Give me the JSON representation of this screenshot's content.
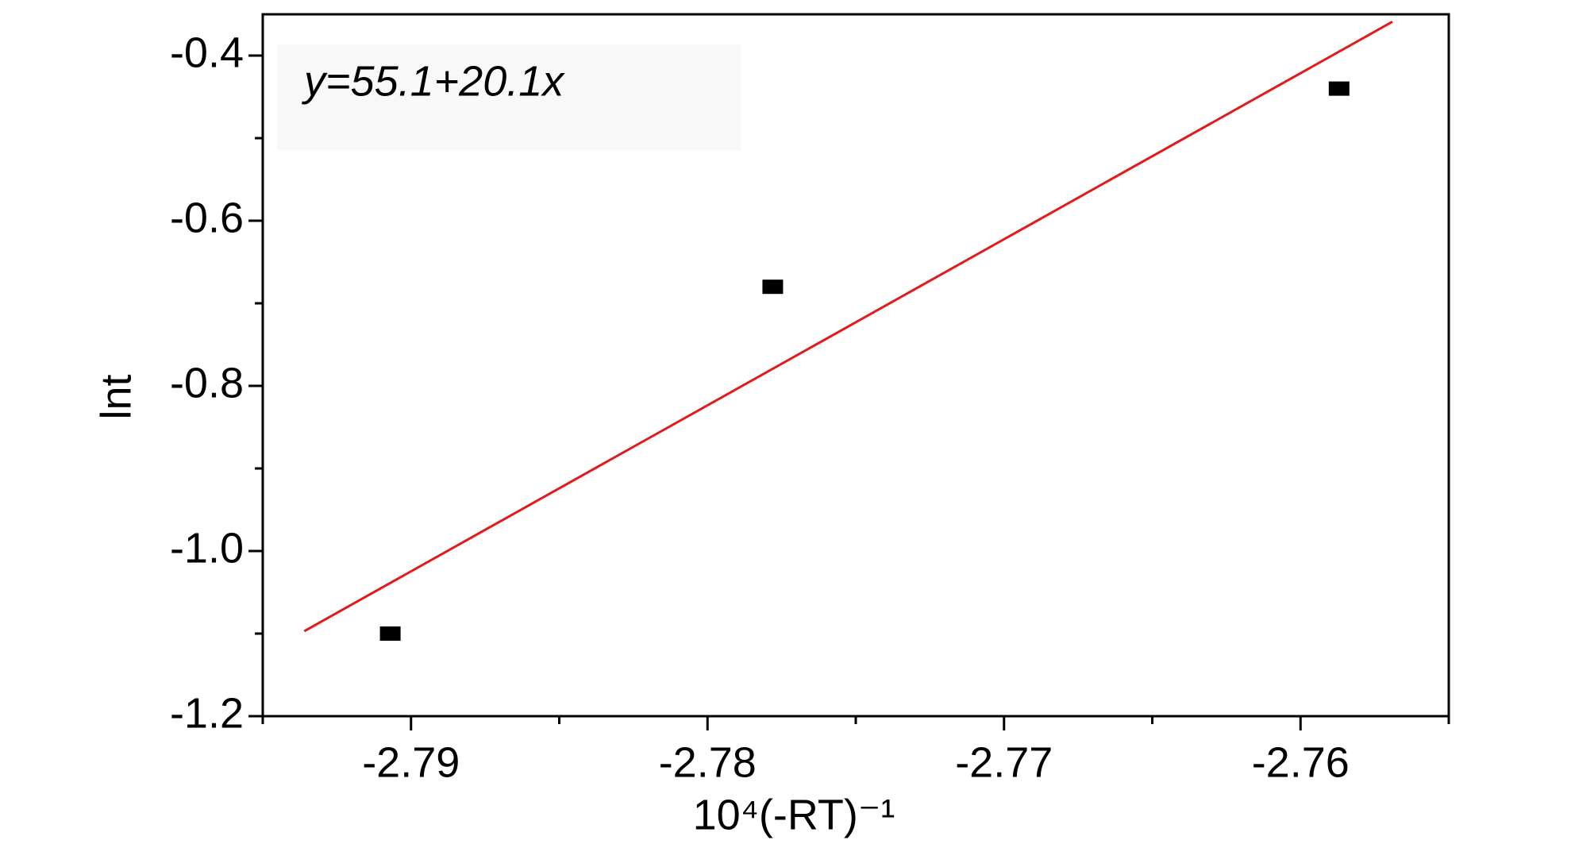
{
  "chart_data": {
    "type": "scatter",
    "annotation": "y=55.1+20.1x",
    "x_label": "10⁴(-RT)⁻¹",
    "y_label": "lnt",
    "x": [
      -2.7907,
      -2.7778,
      -2.7587
    ],
    "values": [
      -1.1,
      -0.68,
      -0.44
    ],
    "color": "#000000",
    "fit_line": {
      "x": [
        -2.7936,
        -2.7569
      ],
      "values": [
        -1.097,
        -0.359
      ],
      "color": "#e31a1c"
    },
    "xlim": [
      -2.795,
      -2.755
    ],
    "ylim": [
      -1.2,
      -0.35
    ],
    "xticks": [
      -2.79,
      -2.78,
      -2.77,
      -2.76
    ],
    "yticks": [
      -1.2,
      {
        "value": -1.0,
        "label": "-1.0"
      },
      -0.8,
      -0.6,
      -0.4
    ],
    "xminor": [
      -2.795,
      -2.785,
      -2.775,
      -2.765,
      -2.755
    ],
    "yminor": [
      -1.1,
      -0.9,
      -0.7,
      -0.5
    ]
  }
}
